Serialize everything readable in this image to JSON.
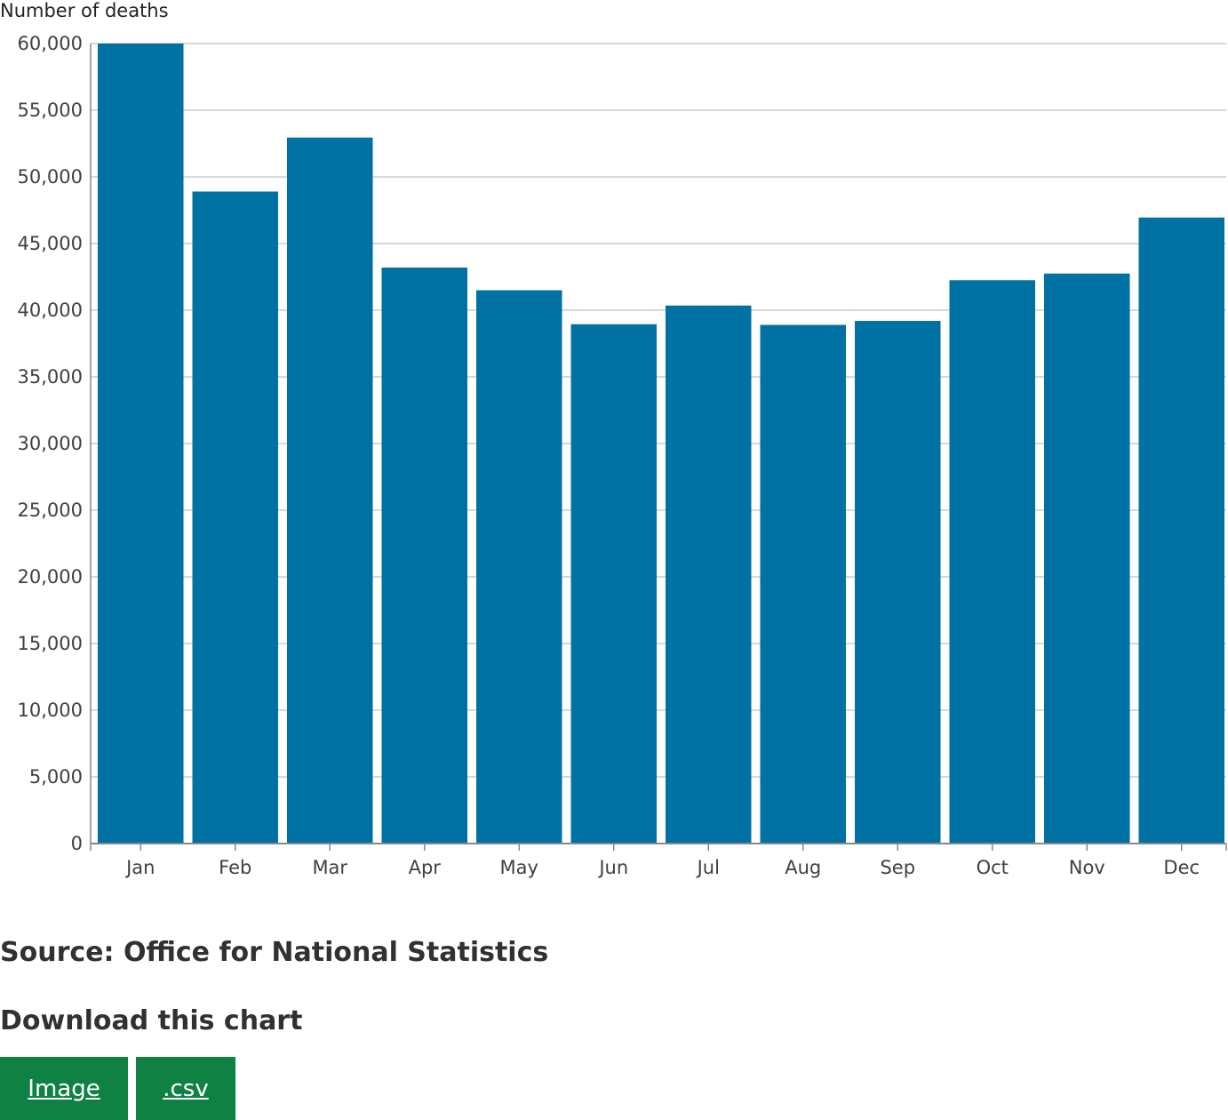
{
  "chart_data": {
    "type": "bar",
    "ylabel": "Number of deaths",
    "categories": [
      "Jan",
      "Feb",
      "Mar",
      "Apr",
      "May",
      "Jun",
      "Jul",
      "Aug",
      "Sep",
      "Oct",
      "Nov",
      "Dec"
    ],
    "values": [
      60000,
      48900,
      52950,
      43200,
      41500,
      38950,
      40350,
      38900,
      39200,
      42250,
      42750,
      46950
    ],
    "ylim": [
      0,
      60000
    ],
    "yticks": [
      0,
      5000,
      10000,
      15000,
      20000,
      25000,
      30000,
      35000,
      40000,
      45000,
      50000,
      55000,
      60000
    ],
    "ytick_labels": [
      "0",
      "5,000",
      "10,000",
      "15,000",
      "20,000",
      "25,000",
      "30,000",
      "35,000",
      "40,000",
      "45,000",
      "50,000",
      "55,000",
      "60,000"
    ],
    "grid": true,
    "bar_color": "#0071a3"
  },
  "source": "Source: Office for National Statistics",
  "download": {
    "heading": "Download this chart",
    "image_label": "Image",
    "csv_label": ".csv"
  },
  "colors": {
    "button": "#0f8243"
  }
}
